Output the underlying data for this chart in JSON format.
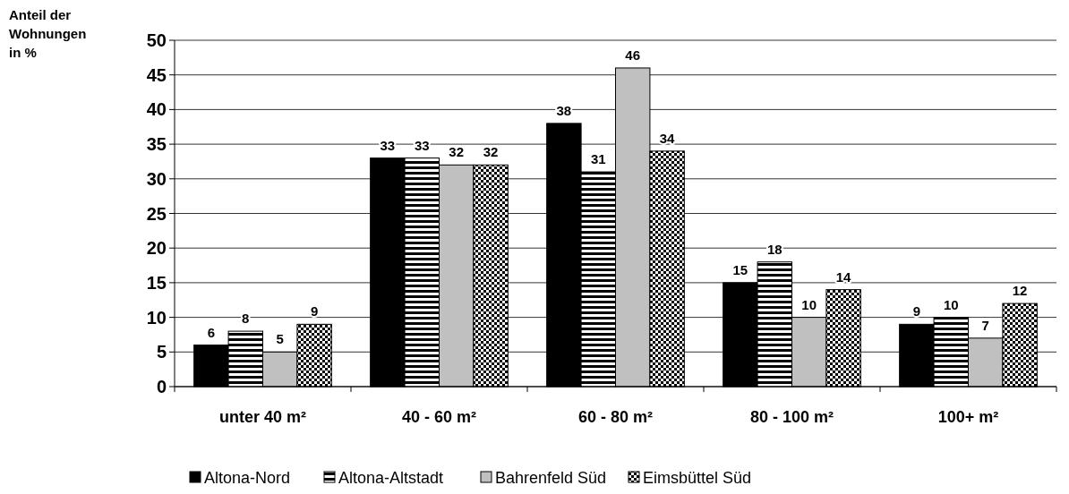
{
  "chart_data": {
    "type": "bar",
    "ylabel": "Anteil der Wohnungen in %",
    "categories": [
      "unter 40 m²",
      "40 - 60 m²",
      "60 - 80 m²",
      "80 - 100 m²",
      "100+ m²"
    ],
    "series": [
      {
        "name": "Altona-Nord",
        "color": "#000000",
        "values": [
          6,
          33,
          38,
          15,
          9
        ]
      },
      {
        "name": "Altona-Altstadt",
        "color": "#000000",
        "values": [
          8,
          33,
          31,
          18,
          10
        ]
      },
      {
        "name": "Bahrenfeld Süd",
        "color": "#c0c0c0",
        "values": [
          5,
          32,
          46,
          10,
          7
        ]
      },
      {
        "name": "Eimsbüttel Süd",
        "color": "#000000",
        "values": [
          9,
          32,
          34,
          14,
          12
        ]
      }
    ],
    "ylim": [
      0,
      50
    ],
    "yticks": [
      0,
      5,
      10,
      15,
      20,
      25,
      30,
      35,
      40,
      45,
      50
    ],
    "grid": "y",
    "legend": "bottom",
    "data_labels": true
  }
}
